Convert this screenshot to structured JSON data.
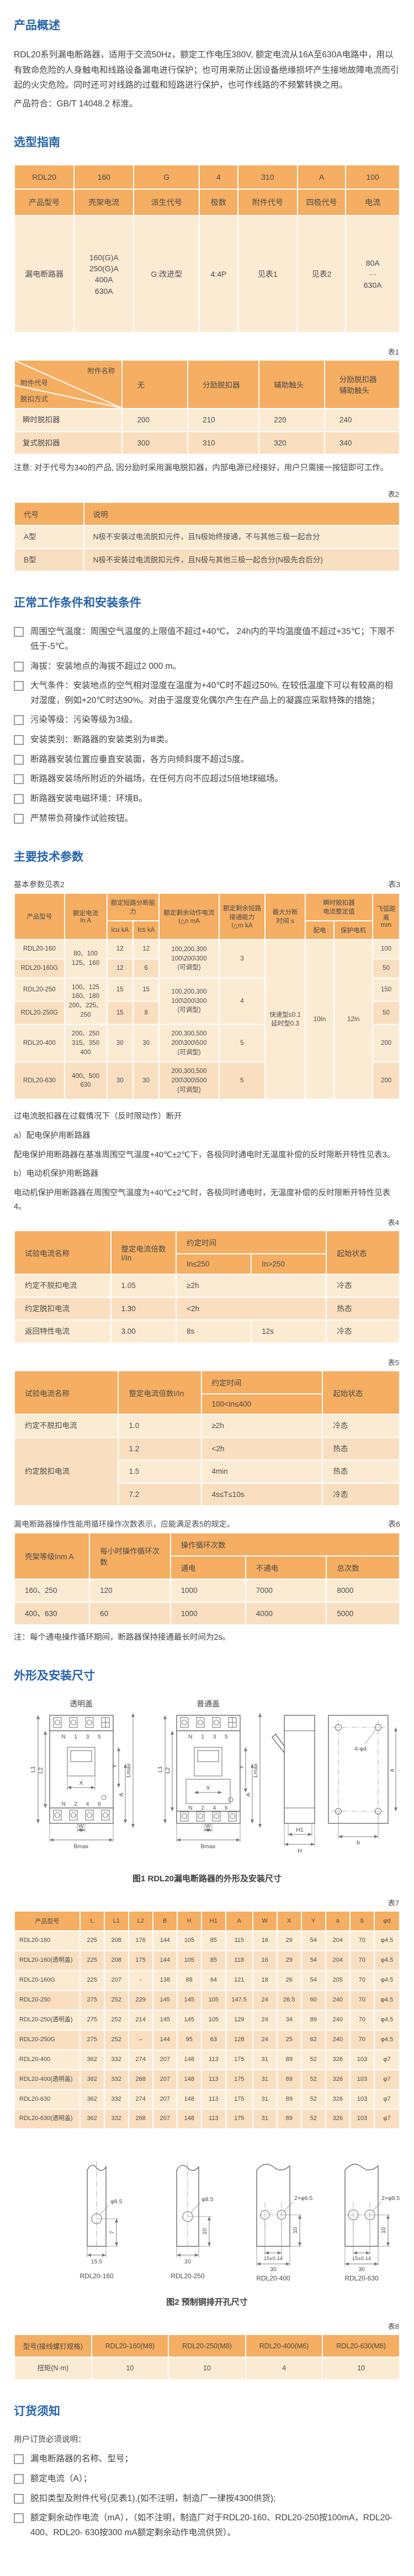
{
  "colors": {
    "accent_blue": "#2563A8",
    "table_header_orange": "#F5AE62",
    "row_light": "#FCEBD3",
    "row_dark": "#F9DFC0"
  },
  "overview": {
    "title": "产品概述",
    "p1": "RDL20系列漏电断路器，适用于交流50Hz，额定工作电压380V, 额定电流从16A至630A电路中，用以有致命危险的人身触电和线路设备漏电进行保护；也可用来防止因设备绝缘损坏产生接地故障电流而引起的火灾危险。同时还可对线路的过载和短路进行保护，也可作线路的不频繁转换之用。",
    "p2": "产品符合：GB/T 14048.2 标准。"
  },
  "selection": {
    "title": "选型指南",
    "table": {
      "rows": [
        [
          {
            "t": "RDL20",
            "h": 1
          },
          {
            "t": "160",
            "h": 1
          },
          {
            "t": "G",
            "h": 1
          },
          {
            "t": "4",
            "h": 1
          },
          {
            "t": "310",
            "h": 1
          },
          {
            "t": "A",
            "h": 1
          },
          {
            "t": "100",
            "h": 1
          }
        ],
        [
          {
            "t": "产品型号",
            "h": 1
          },
          {
            "t": "壳架电流",
            "h": 1
          },
          {
            "t": "派生代号",
            "h": 1
          },
          {
            "t": "极数",
            "h": 1
          },
          {
            "t": "附件代号",
            "h": 1
          },
          {
            "t": "四极代号",
            "h": 1
          },
          {
            "t": "电流",
            "h": 1
          }
        ],
        [
          "漏电断路器",
          "160(G)A\n250(G)A\n400A\n630A",
          "G:改进型",
          "4:4P",
          "见表1",
          "见表2",
          "80A\n···\n630A"
        ]
      ]
    },
    "t1_label": "表1",
    "acc_table": {
      "rows": [
        [
          {
            "diag": [
              "附件代号",
              "附件名称",
              "脱扣方式"
            ],
            "h": 1
          },
          {
            "t": "无",
            "h": 1
          },
          {
            "t": "分励脱扣器",
            "h": 1
          },
          {
            "t": "辅助触头",
            "h": 1
          },
          {
            "t": "分励脱扣器\n辅助触头",
            "h": 1
          }
        ],
        [
          "瞬时脱扣器",
          "200",
          "210",
          "220",
          "240"
        ],
        [
          "复式脱扣器",
          "300",
          "310",
          "320",
          "340"
        ]
      ]
    },
    "note": "注意: 对于代号为340的产品, 因分励时采用漏电脱扣器，内部电源已经接好，用户只需接一按钮即可工作。",
    "t2_label": "表2",
    "code_table": {
      "rows": [
        [
          {
            "t": "代号",
            "h": 1
          },
          {
            "t": "说明",
            "h": 1
          }
        ],
        [
          "A型",
          "N极不安装过电流脱扣元件，且N极始终接通，不与其他三极一起合分"
        ],
        [
          "B型",
          "N极不安装过电流脱扣元件，且N极与其他三极一起合分(N极先合后分)"
        ]
      ]
    }
  },
  "conditions": {
    "title": "正常工作条件和安装条件",
    "items": [
      "周围空气温度：周围空气温度的上限值不超过+40℃，  24h内的平均温度值不超过+35℃；下限不低于-5℃。",
      "海拔：安装地点的海拔不超过2 000 m。",
      "大气条件：安装地点的空气相对湿度在温度为+40℃时不超过50%, 在较低温度下可以有较高的相对湿度，例如+20℃时达90%。对由于温度变化偶尔产生在产品上的凝露应采取特殊的措施；",
      "污染等级：污染等级为3级。",
      "安装类别：断路器的安装类别为Ⅲ类。",
      "断路器安装位置应垂直安装面，各方向倾斜度不超过5度。",
      "断路器安装场所附近的外磁场，在任何方向不应超过5倍地球磁场。",
      "断路器安装电磁环境：环境B。",
      "严禁带负荷操作试验按钮。"
    ]
  },
  "tech": {
    "title": "主要技术参数",
    "intro_left": "基本参数见表2",
    "t3_label": "表3",
    "main_table": {
      "rows": [
        [
          {
            "t": "产品型号",
            "h": 1,
            "r": 2
          },
          {
            "t": "额定电流\nIn  A",
            "h": 1,
            "r": 2
          },
          {
            "t": "额定短路分断能力",
            "h": 1,
            "c": 2
          },
          {
            "t": "额定剩余动作电流\nI△n  mA",
            "h": 1,
            "r": 2
          },
          {
            "t": "额定剩余短路\n接通能力\nI△m kA",
            "h": 1,
            "r": 2
          },
          {
            "t": "最大分断\n时间  s",
            "h": 1,
            "r": 2
          },
          {
            "t": "瞬时脱扣器\n电流整定值",
            "h": 1,
            "c": 2
          },
          {
            "t": "飞弧距离\nmm",
            "h": 1,
            "r": 2
          }
        ],
        [
          {
            "t": "Icu kA",
            "h": 1
          },
          {
            "t": "Ics kA",
            "h": 1
          },
          {
            "t": "配电",
            "h": 1
          },
          {
            "t": "保护电机",
            "h": 1
          }
        ],
        [
          "RDL20-160",
          {
            "t": "80、100\n125、160",
            "r": 2
          },
          "12",
          "12",
          {
            "t": "100,200,300\n100\\200\\300\n(可调型)",
            "r": 2
          },
          {
            "t": "3",
            "r": 2
          },
          {
            "t": "快速型≤0.1\n延时型0.3",
            "r": 6
          },
          {
            "t": "10In",
            "r": 6
          },
          {
            "t": "12In",
            "r": 6
          },
          "100"
        ],
        [
          "RDL20-160G",
          "12",
          "6",
          "50"
        ],
        [
          "RDL20-250",
          {
            "t": "100、125\n160、180\n200、225、\n250",
            "r": 2
          },
          "15",
          "15",
          {
            "t": "100,200,300\n100\\200\\300\n(可调型)",
            "r": 2
          },
          {
            "t": "4",
            "r": 2
          },
          "150"
        ],
        [
          "RDL20-250G",
          "15",
          "8",
          "50"
        ],
        [
          "RDL20-400",
          {
            "t": "200、250\n315、350\n400"
          },
          "30",
          "30",
          {
            "t": "200,300,500\n200\\300\\500\n(可调型)"
          },
          "5",
          "200"
        ],
        [
          "RDL20-630",
          {
            "t": "400、500\n630"
          },
          "30",
          "30",
          {
            "t": "200,300,500\n200\\300\\500\n(可调型)"
          },
          "5",
          "200"
        ]
      ]
    },
    "overload_text": "过电流脱扣器在过载情况下（反时限动作）断开",
    "a_head": "a）配电保护用断路器",
    "a_text": "配电保护用断路器在基准周围空气温度+40℃±2℃下，各极同时通电时无温度补偿的反时限断开特性见表3。",
    "b_head": "b）电动机保护用断路器",
    "b_text": "电动机保护用断路器在周围空气温度为+40℃±2℃时，各极同时通电时，无温度补偿的反时限断开特性见表4。",
    "t4_label": "表4",
    "t4_table": {
      "rows": [
        [
          {
            "t": "试验电流名称",
            "h": 1,
            "r": 2
          },
          {
            "t": "整定电流倍数\nI/In",
            "h": 1,
            "r": 2
          },
          {
            "t": "约定时间",
            "h": 1,
            "c": 2
          },
          {
            "t": "起始状态",
            "h": 1,
            "r": 2
          }
        ],
        [
          {
            "t": "In≤250",
            "h": 1
          },
          {
            "t": "In>250",
            "h": 1
          }
        ],
        [
          "约定不脱扣电流",
          "1.05",
          {
            "t": "≥2h",
            "c": 2
          },
          "冷态"
        ],
        [
          "约定脱扣电流",
          "1.30",
          {
            "t": "<2h",
            "c": 2
          },
          "热态"
        ],
        [
          "返回特性电流",
          "3.00",
          "8s",
          "12s",
          "冷态"
        ]
      ]
    },
    "t5_label": "表5",
    "t5_table": {
      "rows": [
        [
          {
            "t": "试验电流名称",
            "h": 1,
            "r": 2
          },
          {
            "t": "整定电流倍数I/In",
            "h": 1,
            "r": 2
          },
          {
            "t": "约定时间",
            "h": 1
          },
          {
            "t": "起始状态",
            "h": 1,
            "r": 2
          }
        ],
        [
          {
            "t": "100<In≤400",
            "h": 1
          }
        ],
        [
          "约定不脱扣电流",
          "1.0",
          "≥2h",
          "冷态"
        ],
        [
          {
            "t": "约定脱扣电流",
            "r": 3
          },
          "1.2",
          "<2h",
          "热态"
        ],
        [
          "1.5",
          "4min",
          "热态"
        ],
        [
          "7.2",
          "4s≤T≤10s",
          "冷态"
        ]
      ]
    },
    "cycle_text": "漏电断路器操作性能用循环操作次数表示，应能满足表5的规定。",
    "t6_label": "表6",
    "t6_table": {
      "rows": [
        [
          {
            "t": "壳架等级Inm  A",
            "h": 1,
            "r": 2
          },
          {
            "t": "每小时操作循环次数",
            "h": 1,
            "r": 2
          },
          {
            "t": "操作循环次数",
            "h": 1,
            "c": 3
          }
        ],
        [
          {
            "t": "通电",
            "h": 1
          },
          {
            "t": "不通电",
            "h": 1
          },
          {
            "t": "总次数",
            "h": 1
          }
        ],
        [
          "160、250",
          "120",
          "1000",
          "7000",
          "8000"
        ],
        [
          "400、630",
          "60",
          "1000",
          "4000",
          "5000"
        ]
      ]
    },
    "t6_note": "注：每个通电操作循环期间，断路器保持接通最长时间为2s。"
  },
  "dims": {
    "title": "外形及安装尺寸",
    "fig1": {
      "cover_left": "透明盖",
      "cover_right": "普通盖",
      "term_top": "N 1 3 5",
      "term_bottom": "N 2 4 6",
      "L1": "L1",
      "L2": "L2",
      "Lmax": "Lmax",
      "A": "A",
      "Y": "Y",
      "X": "X",
      "W": "W",
      "Bmax": "Bmax",
      "H": "H",
      "H1": "H1",
      "a": "a",
      "b": "b",
      "holes": "4-φd",
      "caption": "图1 RDL20漏电断路器的外形及安装尺寸"
    },
    "t7_label": "表7",
    "t7_table": {
      "rows": [
        [
          {
            "t": "产品型号",
            "h": 1
          },
          {
            "t": "L",
            "h": 1
          },
          {
            "t": "L1",
            "h": 1
          },
          {
            "t": "L2",
            "h": 1
          },
          {
            "t": "B",
            "h": 1
          },
          {
            "t": "H",
            "h": 1
          },
          {
            "t": "H1",
            "h": 1
          },
          {
            "t": "A",
            "h": 1
          },
          {
            "t": "W",
            "h": 1
          },
          {
            "t": "X",
            "h": 1
          },
          {
            "t": "Y",
            "h": 1
          },
          {
            "t": "a",
            "h": 1
          },
          {
            "t": "b",
            "h": 1
          },
          {
            "t": "φd",
            "h": 1
          }
        ],
        [
          "RDL20-160",
          "225",
          "208",
          "176",
          "144",
          "105",
          "85",
          "115",
          "16",
          "29",
          "54",
          "204",
          "70",
          "φ4.5"
        ],
        [
          "RDL20-160(透明盖)",
          "225",
          "208",
          "175",
          "144",
          "105",
          "85",
          "118",
          "16",
          "29",
          "54",
          "204",
          "70",
          "φ4.5"
        ],
        [
          "RDL20-160G",
          "225",
          "207",
          "-",
          "138",
          "88",
          "64",
          "121",
          "18",
          "26",
          "54",
          "205",
          "70",
          "φ4.5"
        ],
        [
          "RDL20-250",
          "275",
          "252",
          "229",
          "145",
          "145",
          "105",
          "147.5",
          "24",
          "26.5",
          "60",
          "240",
          "70",
          "φ4.5"
        ],
        [
          "RDL20-250(透明盖)",
          "275",
          "252",
          "214",
          "145",
          "145",
          "105",
          "129",
          "24",
          "34",
          "89",
          "240",
          "70",
          "φ4.5"
        ],
        [
          "RDL20-250G",
          "275",
          "252",
          "–",
          "144",
          "95",
          "63",
          "128",
          "24",
          "25",
          "62",
          "240",
          "70",
          "φ4.5"
        ],
        [
          "RDL20-400",
          "362",
          "332",
          "274",
          "207",
          "148",
          "113",
          "175",
          "31",
          "89",
          "52",
          "326",
          "103",
          "φ7"
        ],
        [
          "RDL20-400(透明盖)",
          "362",
          "332",
          "268",
          "207",
          "148",
          "113",
          "175",
          "31",
          "89",
          "52",
          "326",
          "103",
          "φ7"
        ],
        [
          "RDL20-630",
          "362",
          "332",
          "274",
          "207",
          "148",
          "113",
          "175",
          "31",
          "89",
          "52",
          "326",
          "103",
          "φ7"
        ],
        [
          "RDL20-630(透明盖)",
          "362",
          "332",
          "268",
          "207",
          "148",
          "113",
          "175",
          "31",
          "89",
          "52",
          "326",
          "103",
          "φ7"
        ]
      ]
    },
    "fig2": {
      "d1": {
        "hole": "φ8.5",
        "h": "7",
        "w": "15.5",
        "name": "RDL20-160"
      },
      "d2": {
        "hole": "φ8.5",
        "h": "10",
        "w": "20",
        "name": "RDL20-250"
      },
      "d3": {
        "hole": "2×φ6.5",
        "h": "10",
        "w1": "15±0.14",
        "w2": "30",
        "name": "RDL20-400"
      },
      "d4": {
        "hole": "2×φ8.5",
        "h": "10",
        "w1": "15±0.14",
        "w2": "30",
        "name": "RDL20-630"
      },
      "caption": "图2 预制铜排开孔尺寸"
    },
    "t8_label": "表8",
    "t8_table": {
      "rows": [
        [
          {
            "t": "型号(接线螺钉规格)",
            "h": 1
          },
          {
            "t": "RDL20-160(M8)",
            "h": 1
          },
          {
            "t": "RDL20-250(M8)",
            "h": 1
          },
          {
            "t": "RDL20-400(M6)",
            "h": 1
          },
          {
            "t": "RDL20-630(M8)",
            "h": 1
          }
        ],
        [
          "扭矩(N·m)",
          "10",
          "10",
          "4",
          "10"
        ]
      ]
    }
  },
  "ordering": {
    "title": "订货须知",
    "intro": "用户订货必须说明：",
    "items": [
      "漏电断路器的名称、型号；",
      "额定电流（A）；",
      "脱扣类型及附件代号(见表1),(如不注明，制造厂一律按4300供货);",
      "额定剩余动作电流（mA），（如不注明，制造厂对于RDL20-160、RDL20-250按100mA，RDL20-400、RDL20- 630按300 mA额定剩余动作电流供货）。"
    ]
  }
}
